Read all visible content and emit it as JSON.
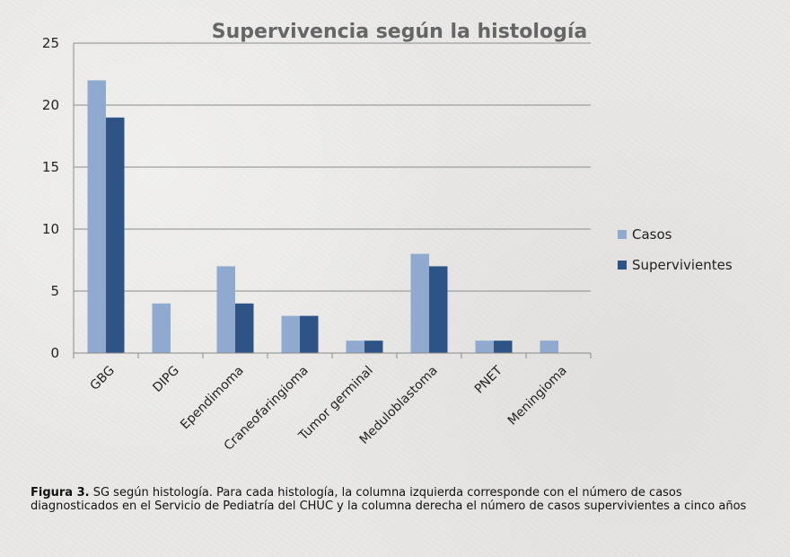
{
  "chart_data": {
    "type": "bar",
    "title": "Supervivencia según la histología",
    "categories": [
      "GBG",
      "DIPG",
      "Ependimoma",
      "Craneofaringioma",
      "Tumor germinal",
      "Meduloblastoma",
      "PNET",
      "Meningioma"
    ],
    "series": [
      {
        "name": "Casos",
        "values": [
          22,
          4,
          7,
          3,
          1,
          8,
          1,
          1
        ],
        "color": "#8fa9cf"
      },
      {
        "name": "Supervivientes",
        "values": [
          19,
          0,
          4,
          3,
          1,
          7,
          1,
          0
        ],
        "color": "#2e5385"
      }
    ],
    "y_ticks": [
      "0",
      "5",
      "10",
      "15",
      "20",
      "25"
    ],
    "ylim": [
      0,
      25
    ],
    "grid": true,
    "legend_position": "right"
  },
  "caption": {
    "label": "Figura 3.",
    "text": " SG según histología. Para cada histología, la columna izquierda corresponde con el número de casos diagnosticados en el Servicio de Pediatría del CHUC y la columna derecha el número de casos supervivientes a cinco años"
  }
}
